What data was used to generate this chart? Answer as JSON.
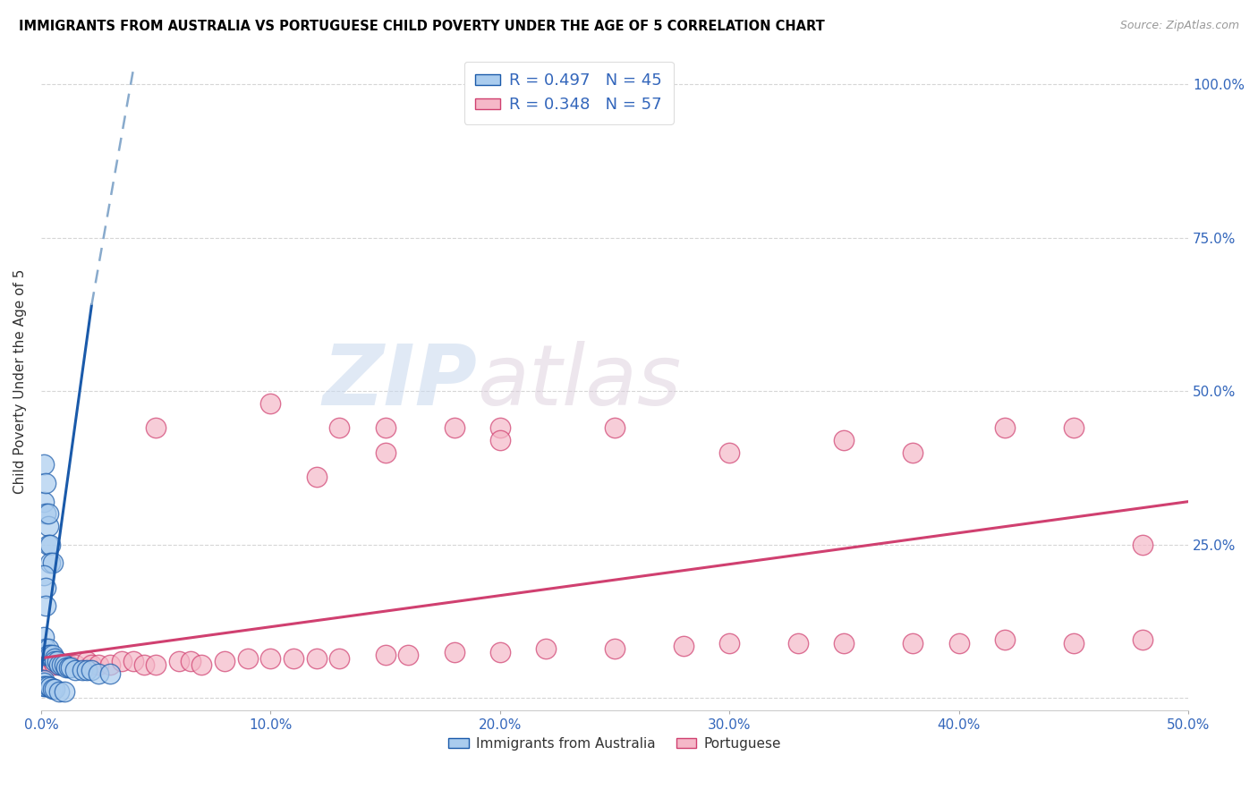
{
  "title": "IMMIGRANTS FROM AUSTRALIA VS PORTUGUESE CHILD POVERTY UNDER THE AGE OF 5 CORRELATION CHART",
  "source": "Source: ZipAtlas.com",
  "ylabel": "Child Poverty Under the Age of 5",
  "legend_blue_r": "R = 0.497",
  "legend_blue_n": "N = 45",
  "legend_pink_r": "R = 0.348",
  "legend_pink_n": "N = 57",
  "legend_label_blue": "Immigrants from Australia",
  "legend_label_pink": "Portuguese",
  "blue_color": "#aaccee",
  "pink_color": "#f5b8c8",
  "trendline_blue_color": "#1a5aaa",
  "trendline_pink_color": "#d04070",
  "trendline_blue_dashed_color": "#88aacc",
  "watermark_zip": "ZIP",
  "watermark_atlas": "atlas",
  "xlim": [
    0.0,
    0.5
  ],
  "ylim": [
    -0.02,
    1.05
  ],
  "xticks": [
    0.0,
    0.1,
    0.2,
    0.3,
    0.4,
    0.5
  ],
  "xtick_labels": [
    "0.0%",
    "10.0%",
    "20.0%",
    "30.0%",
    "40.0%",
    "50.0%"
  ],
  "yticks_right": [
    0.25,
    0.5,
    0.75,
    1.0
  ],
  "ytick_right_labels": [
    "25.0%",
    "50.0%",
    "75.0%",
    "100.0%"
  ],
  "figsize": [
    14.06,
    8.92
  ],
  "dpi": 100,
  "blue_points_x": [
    0.001,
    0.001,
    0.002,
    0.002,
    0.003,
    0.003,
    0.003,
    0.004,
    0.004,
    0.005,
    0.001,
    0.002,
    0.002,
    0.001,
    0.001,
    0.002,
    0.003,
    0.003,
    0.004,
    0.005,
    0.006,
    0.006,
    0.007,
    0.008,
    0.009,
    0.01,
    0.011,
    0.012,
    0.013,
    0.015,
    0.018,
    0.02,
    0.022,
    0.025,
    0.03,
    0.001,
    0.001,
    0.001,
    0.002,
    0.003,
    0.004,
    0.005,
    0.006,
    0.008,
    0.01
  ],
  "blue_points_y": [
    0.32,
    0.38,
    0.3,
    0.35,
    0.28,
    0.3,
    0.25,
    0.25,
    0.22,
    0.22,
    0.2,
    0.18,
    0.15,
    0.1,
    0.07,
    0.08,
    0.08,
    0.07,
    0.07,
    0.07,
    0.065,
    0.06,
    0.06,
    0.055,
    0.055,
    0.055,
    0.05,
    0.05,
    0.05,
    0.045,
    0.045,
    0.045,
    0.045,
    0.04,
    0.04,
    0.03,
    0.025,
    0.02,
    0.02,
    0.02,
    0.018,
    0.015,
    0.015,
    0.01,
    0.01
  ],
  "pink_points_x": [
    0.001,
    0.002,
    0.003,
    0.005,
    0.006,
    0.008,
    0.01,
    0.012,
    0.015,
    0.02,
    0.022,
    0.025,
    0.03,
    0.035,
    0.04,
    0.045,
    0.05,
    0.06,
    0.065,
    0.07,
    0.08,
    0.09,
    0.1,
    0.11,
    0.12,
    0.13,
    0.15,
    0.16,
    0.18,
    0.2,
    0.22,
    0.25,
    0.28,
    0.3,
    0.33,
    0.35,
    0.38,
    0.4,
    0.42,
    0.45,
    0.48,
    0.05,
    0.1,
    0.13,
    0.15,
    0.18,
    0.2,
    0.12,
    0.15,
    0.2,
    0.25,
    0.3,
    0.35,
    0.38,
    0.42,
    0.45,
    0.48
  ],
  "pink_points_y": [
    0.06,
    0.06,
    0.06,
    0.06,
    0.055,
    0.055,
    0.055,
    0.055,
    0.055,
    0.06,
    0.055,
    0.055,
    0.055,
    0.06,
    0.06,
    0.055,
    0.055,
    0.06,
    0.06,
    0.055,
    0.06,
    0.065,
    0.065,
    0.065,
    0.065,
    0.065,
    0.07,
    0.07,
    0.075,
    0.075,
    0.08,
    0.08,
    0.085,
    0.09,
    0.09,
    0.09,
    0.09,
    0.09,
    0.095,
    0.09,
    0.095,
    0.44,
    0.48,
    0.44,
    0.44,
    0.44,
    0.44,
    0.36,
    0.4,
    0.42,
    0.44,
    0.4,
    0.42,
    0.4,
    0.44,
    0.44,
    0.25
  ],
  "blue_trendline": [
    [
      0.0,
      0.045
    ],
    [
      0.022,
      0.64
    ]
  ],
  "blue_trendline_dashed": [
    [
      0.022,
      0.64
    ],
    [
      0.04,
      1.02
    ]
  ],
  "pink_trendline": [
    [
      0.0,
      0.065
    ],
    [
      0.5,
      0.32
    ]
  ]
}
